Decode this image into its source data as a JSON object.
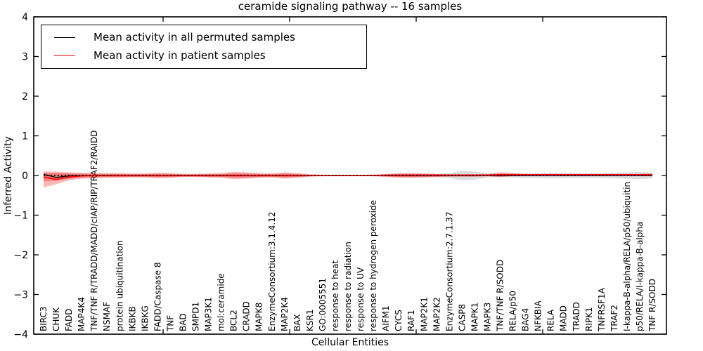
{
  "figure": {
    "background": "#ffffff"
  },
  "chart_data": {
    "type": "line",
    "title": "ceramide signaling pathway -- 16 samples",
    "xlabel": "Cellular Entities",
    "ylabel": "Inferred Activity",
    "ylim": [
      -4,
      4
    ],
    "yticks": [
      -4,
      -3,
      -2,
      -1,
      0,
      1,
      2,
      3,
      4
    ],
    "ytick_labels": [
      "−4",
      "−3",
      "−2",
      "−1",
      "0",
      "1",
      "2",
      "3",
      "4"
    ],
    "grid": false,
    "legend": {
      "position": "upper left",
      "entries": [
        {
          "label": "Mean activity in all permuted samples",
          "color": "#000000"
        },
        {
          "label": "Mean activity in patient samples",
          "color": "#ff0000"
        }
      ]
    },
    "categories": [
      "BIRC3",
      "CHUK",
      "FADD",
      "MAP4K4",
      "TNF/TNF R/TRADD/MADD/cIAP/RIP/TRAF2/RAIDD",
      "NSMAF",
      "protein ubiquitination",
      "IKBKB",
      "IKBKG",
      "FADD/Caspase 8",
      "TNF",
      "BAD",
      "SMPD1",
      "MAP3K1",
      "mol:ceramide",
      "BCL2",
      "CRADD",
      "MAPK8",
      "EnzymeConsortium:3.1.4.12",
      "MAP2K4",
      "BAX",
      "KSR1",
      "GO:0005551",
      "response to heat",
      "response to radiation",
      "response to UV",
      "response to hydrogen peroxide",
      "AIFM1",
      "CYCS",
      "RAF1",
      "MAP2K1",
      "MAP2K2",
      "EnzymeConsortium:2.7.1.37",
      "CASP8",
      "MAPK1",
      "MAPK3",
      "TNF/TNF R/SODD",
      "RELA/p50",
      "BAG4",
      "NFKBIA",
      "RELA",
      "MADD",
      "TRADD",
      "RIPK1",
      "TNFRSF1A",
      "TRAF2",
      "I-kappa-B-alpha/RELA/p50/ubiquitin",
      "p50/RELA/I-kappa-B-alpha",
      "TNF R/SODD"
    ],
    "series": [
      {
        "name": "Mean activity in all permuted samples",
        "color": "#000000",
        "style": "solid",
        "values": [
          0.03,
          -0.05,
          -0.01,
          0,
          0,
          0,
          0,
          0,
          0,
          0,
          0,
          0,
          0,
          0,
          0,
          0,
          0,
          0,
          0,
          0,
          0,
          0,
          0,
          0,
          0,
          0,
          0,
          0,
          0,
          0,
          0,
          0,
          0,
          0,
          0,
          0,
          0,
          0,
          0,
          0,
          0,
          0,
          0,
          0,
          0,
          0,
          0,
          0,
          0
        ]
      },
      {
        "name": "Mean activity in patient samples",
        "color": "#ff0000",
        "style": "solid",
        "values": [
          -0.04,
          -0.1,
          -0.04,
          -0.01,
          0,
          0,
          0,
          0,
          0,
          0,
          0,
          0,
          0,
          0,
          0,
          0,
          0,
          0,
          0,
          0,
          0,
          0,
          0,
          0,
          0,
          0,
          0,
          0.01,
          0.01,
          0.01,
          0.01,
          0.01,
          0.01,
          0.01,
          0.01,
          0.01,
          0.02,
          0.02,
          0.02,
          0.02,
          0.02,
          0.02,
          0.02,
          0.02,
          0.02,
          0.02,
          0.02,
          0.02,
          0.02
        ]
      }
    ],
    "bands": [
      {
        "name": "permuted-samples-range",
        "color": "#8c8c8c",
        "opacity": 0.3,
        "upper": [
          0.05,
          0.05,
          0.04,
          0.03,
          0.03,
          0.03,
          0.03,
          0.03,
          0.03,
          0.035,
          0.03,
          0.025,
          0.025,
          0.03,
          0.035,
          0.045,
          0.04,
          0.035,
          0.03,
          0.04,
          0.03,
          0.02,
          0.012,
          0.01,
          0.01,
          0.01,
          0.012,
          0.02,
          0.03,
          0.035,
          0.04,
          0.045,
          0.06,
          0.12,
          0.1,
          0.05,
          0.04,
          0.05,
          0.06,
          0.065,
          0.07,
          0.065,
          0.06,
          0.06,
          0.065,
          0.07,
          0.08,
          0.09,
          0.07
        ],
        "lower": [
          -0.05,
          -0.05,
          -0.04,
          -0.03,
          -0.03,
          -0.03,
          -0.03,
          -0.03,
          -0.03,
          -0.035,
          -0.03,
          -0.025,
          -0.025,
          -0.03,
          -0.035,
          -0.045,
          -0.04,
          -0.035,
          -0.03,
          -0.04,
          -0.03,
          -0.02,
          -0.012,
          -0.01,
          -0.01,
          -0.01,
          -0.012,
          -0.02,
          -0.03,
          -0.035,
          -0.04,
          -0.045,
          -0.06,
          -0.12,
          -0.1,
          -0.05,
          -0.04,
          -0.05,
          -0.06,
          -0.065,
          -0.07,
          -0.065,
          -0.06,
          -0.06,
          -0.065,
          -0.07,
          -0.08,
          -0.09,
          -0.07
        ]
      },
      {
        "name": "patient-samples-range-outer",
        "color": "#ff0000",
        "opacity": 0.28,
        "upper": [
          0.1,
          0.1,
          0.08,
          0.07,
          0.06,
          0.06,
          0.06,
          0.05,
          0.05,
          0.07,
          0.06,
          0.04,
          0.04,
          0.05,
          0.06,
          0.09,
          0.08,
          0.06,
          0.05,
          0.08,
          0.06,
          0.03,
          0.02,
          0.015,
          0.015,
          0.015,
          0.02,
          0.04,
          0.06,
          0.06,
          0.05,
          0.04,
          0.03,
          0.03,
          0.03,
          0.04,
          0.08,
          0.06,
          0.03,
          0.025,
          0.025,
          0.025,
          0.025,
          0.025,
          0.025,
          0.025,
          0.03,
          0.035,
          0.05
        ],
        "lower": [
          -0.3,
          -0.22,
          -0.12,
          -0.08,
          -0.07,
          -0.06,
          -0.06,
          -0.05,
          -0.05,
          -0.07,
          -0.06,
          -0.04,
          -0.04,
          -0.05,
          -0.06,
          -0.09,
          -0.08,
          -0.06,
          -0.05,
          -0.08,
          -0.06,
          -0.03,
          -0.02,
          -0.015,
          -0.015,
          -0.015,
          -0.02,
          -0.04,
          -0.06,
          -0.06,
          -0.05,
          -0.04,
          -0.03,
          -0.03,
          -0.03,
          -0.02,
          -0.04,
          -0.02,
          -0.01,
          -0.005,
          -0.005,
          -0.005,
          -0.005,
          -0.005,
          -0.005,
          -0.005,
          -0.01,
          -0.015,
          -0.02
        ]
      },
      {
        "name": "patient-samples-range-inner",
        "color": "#ff0000",
        "opacity": 0.28,
        "upper": [
          0.06,
          0.06,
          0.05,
          0.045,
          0.04,
          0.04,
          0.04,
          0.035,
          0.035,
          0.045,
          0.04,
          0.03,
          0.03,
          0.035,
          0.04,
          0.055,
          0.05,
          0.04,
          0.035,
          0.05,
          0.04,
          0.02,
          0.013,
          0.01,
          0.01,
          0.01,
          0.013,
          0.025,
          0.04,
          0.04,
          0.033,
          0.027,
          0.02,
          0.02,
          0.02,
          0.027,
          0.05,
          0.04,
          0.02,
          0.017,
          0.017,
          0.017,
          0.017,
          0.017,
          0.017,
          0.017,
          0.02,
          0.023,
          0.033
        ],
        "lower": [
          -0.15,
          -0.13,
          -0.08,
          -0.055,
          -0.047,
          -0.04,
          -0.04,
          -0.035,
          -0.035,
          -0.045,
          -0.04,
          -0.03,
          -0.03,
          -0.035,
          -0.04,
          -0.055,
          -0.05,
          -0.04,
          -0.035,
          -0.05,
          -0.04,
          -0.02,
          -0.013,
          -0.01,
          -0.01,
          -0.01,
          -0.013,
          -0.025,
          -0.04,
          -0.04,
          -0.033,
          -0.027,
          -0.02,
          -0.02,
          -0.02,
          -0.013,
          -0.027,
          -0.013,
          -0.007,
          -0.003,
          -0.003,
          -0.003,
          -0.003,
          -0.003,
          -0.003,
          -0.003,
          -0.007,
          -0.01,
          -0.013
        ]
      }
    ],
    "zero_line": {
      "color": "#000000",
      "style": "dotted",
      "value": 0
    }
  }
}
